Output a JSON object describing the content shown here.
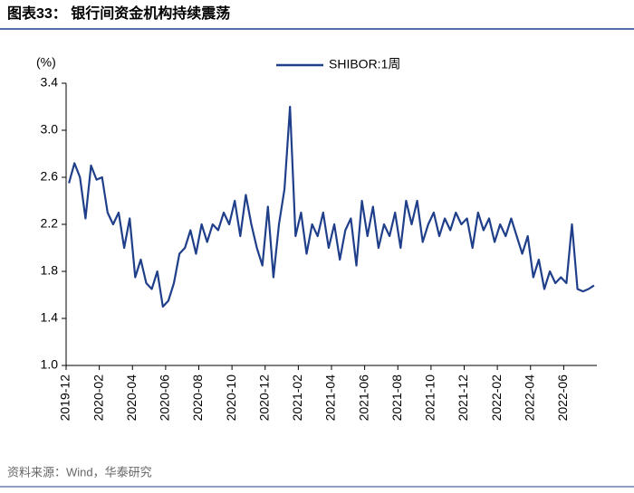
{
  "title": "图表33：  银行间资金机构持续震荡",
  "source": "资料来源：Wind，华泰研究",
  "chart_data": {
    "type": "line",
    "y_label": "(%)",
    "x": [
      "2019-12",
      "2019-12",
      "2019-12",
      "2020-01",
      "2020-01",
      "2020-01",
      "2020-02",
      "2020-02",
      "2020-02",
      "2020-03",
      "2020-03",
      "2020-03",
      "2020-04",
      "2020-04",
      "2020-04",
      "2020-05",
      "2020-05",
      "2020-05",
      "2020-06",
      "2020-06",
      "2020-06",
      "2020-07",
      "2020-07",
      "2020-07",
      "2020-08",
      "2020-08",
      "2020-08",
      "2020-09",
      "2020-09",
      "2020-09",
      "2020-10",
      "2020-10",
      "2020-10",
      "2020-11",
      "2020-11",
      "2020-11",
      "2020-12",
      "2020-12",
      "2020-12",
      "2021-01",
      "2021-01",
      "2021-01",
      "2021-02",
      "2021-02",
      "2021-02",
      "2021-03",
      "2021-03",
      "2021-03",
      "2021-04",
      "2021-04",
      "2021-04",
      "2021-05",
      "2021-05",
      "2021-05",
      "2021-06",
      "2021-06",
      "2021-06",
      "2021-07",
      "2021-07",
      "2021-07",
      "2021-08",
      "2021-08",
      "2021-08",
      "2021-09",
      "2021-09",
      "2021-09",
      "2021-10",
      "2021-10",
      "2021-10",
      "2021-11",
      "2021-11",
      "2021-11",
      "2021-12",
      "2021-12",
      "2021-12",
      "2022-01",
      "2022-01",
      "2022-01",
      "2022-02",
      "2022-02",
      "2022-02",
      "2022-03",
      "2022-03",
      "2022-03",
      "2022-04",
      "2022-04",
      "2022-04",
      "2022-05",
      "2022-05",
      "2022-05",
      "2022-06",
      "2022-06",
      "2022-06",
      "2022-07",
      "2022-07",
      "2022-07"
    ],
    "series": [
      {
        "name": "SHIBOR:1周",
        "color": "#1f3f8a",
        "values": [
          2.55,
          2.72,
          2.6,
          2.25,
          2.7,
          2.58,
          2.6,
          2.3,
          2.2,
          2.3,
          2.0,
          2.25,
          1.75,
          1.9,
          1.7,
          1.65,
          1.8,
          1.5,
          1.55,
          1.7,
          1.95,
          2.0,
          2.15,
          1.95,
          2.2,
          2.05,
          2.2,
          2.15,
          2.3,
          2.2,
          2.4,
          2.1,
          2.45,
          2.2,
          2.0,
          1.85,
          2.35,
          1.75,
          2.2,
          2.5,
          3.2,
          2.1,
          2.3,
          1.95,
          2.2,
          2.1,
          2.3,
          2.0,
          2.2,
          1.9,
          2.15,
          2.25,
          1.85,
          2.4,
          2.1,
          2.35,
          2.0,
          2.2,
          2.1,
          2.3,
          2.0,
          2.4,
          2.2,
          2.4,
          2.05,
          2.2,
          2.3,
          2.1,
          2.25,
          2.15,
          2.3,
          2.2,
          2.25,
          2.0,
          2.3,
          2.15,
          2.25,
          2.05,
          2.2,
          2.1,
          2.25,
          2.1,
          1.95,
          2.1,
          1.75,
          1.9,
          1.65,
          1.8,
          1.7,
          1.75,
          1.7,
          2.2,
          1.65,
          1.63,
          1.65,
          1.68
        ]
      }
    ],
    "xlim": [
      "2019-12",
      "2022-08"
    ],
    "xticks": [
      "2019-12",
      "2020-02",
      "2020-04",
      "2020-06",
      "2020-08",
      "2020-10",
      "2020-12",
      "2021-02",
      "2021-04",
      "2021-06",
      "2021-08",
      "2021-10",
      "2021-12",
      "2022-02",
      "2022-04",
      "2022-06"
    ],
    "ylim": [
      1,
      3.4
    ],
    "yticks": [
      {
        "value": 1,
        "label": "1.0"
      },
      1.4,
      1.8,
      2.2,
      2.6,
      {
        "value": 3,
        "label": "3.0"
      },
      3.4
    ],
    "legend": "top"
  }
}
